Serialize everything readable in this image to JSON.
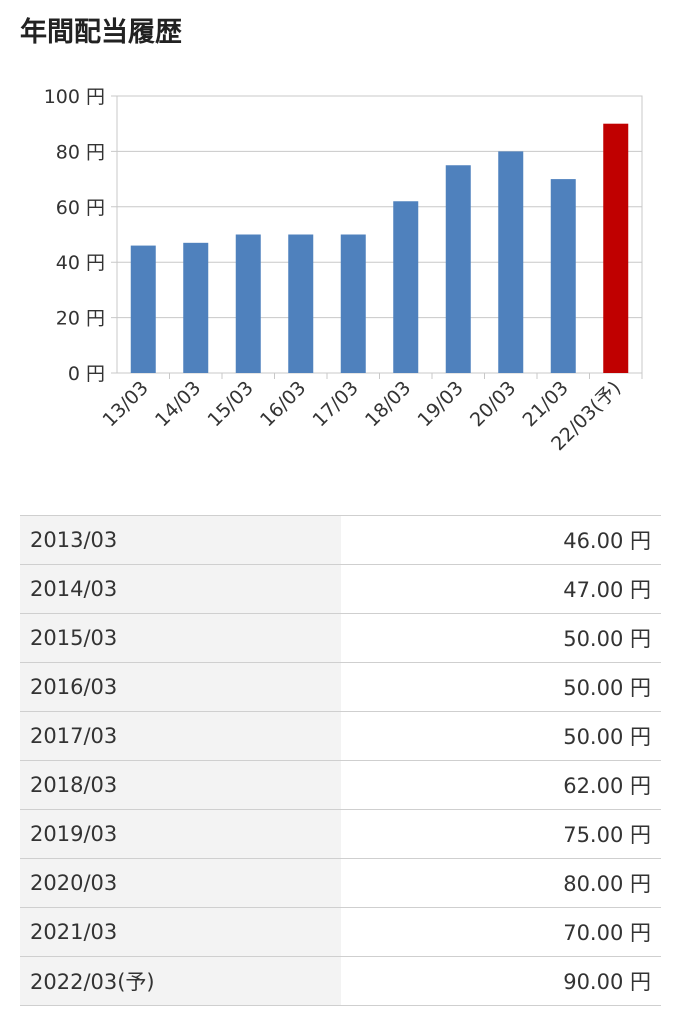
{
  "page": {
    "title": "年間配当履歴"
  },
  "chart_data": {
    "type": "bar",
    "title": "",
    "xlabel": "",
    "ylabel": "",
    "ylim": [
      0,
      100
    ],
    "yticks": [
      0,
      20,
      40,
      60,
      80,
      100
    ],
    "ytick_labels": [
      "0 円",
      "20 円",
      "40 円",
      "60 円",
      "80 円",
      "100 円"
    ],
    "grid": true,
    "categories": [
      "13/03",
      "14/03",
      "15/03",
      "16/03",
      "17/03",
      "18/03",
      "19/03",
      "20/03",
      "21/03",
      "22/03(予)"
    ],
    "values": [
      46,
      47,
      50,
      50,
      50,
      62,
      75,
      80,
      70,
      90
    ],
    "bar_colors": [
      "#4f81bd",
      "#4f81bd",
      "#4f81bd",
      "#4f81bd",
      "#4f81bd",
      "#4f81bd",
      "#4f81bd",
      "#4f81bd",
      "#4f81bd",
      "#c00000"
    ]
  },
  "table": {
    "rows": [
      {
        "period": "2013/03",
        "value": "46.00 円"
      },
      {
        "period": "2014/03",
        "value": "47.00 円"
      },
      {
        "period": "2015/03",
        "value": "50.00 円"
      },
      {
        "period": "2016/03",
        "value": "50.00 円"
      },
      {
        "period": "2017/03",
        "value": "50.00 円"
      },
      {
        "period": "2018/03",
        "value": "62.00 円"
      },
      {
        "period": "2019/03",
        "value": "75.00 円"
      },
      {
        "period": "2020/03",
        "value": "80.00 円"
      },
      {
        "period": "2021/03",
        "value": "70.00 円"
      },
      {
        "period": "2022/03(予)",
        "value": "90.00 円"
      }
    ]
  }
}
